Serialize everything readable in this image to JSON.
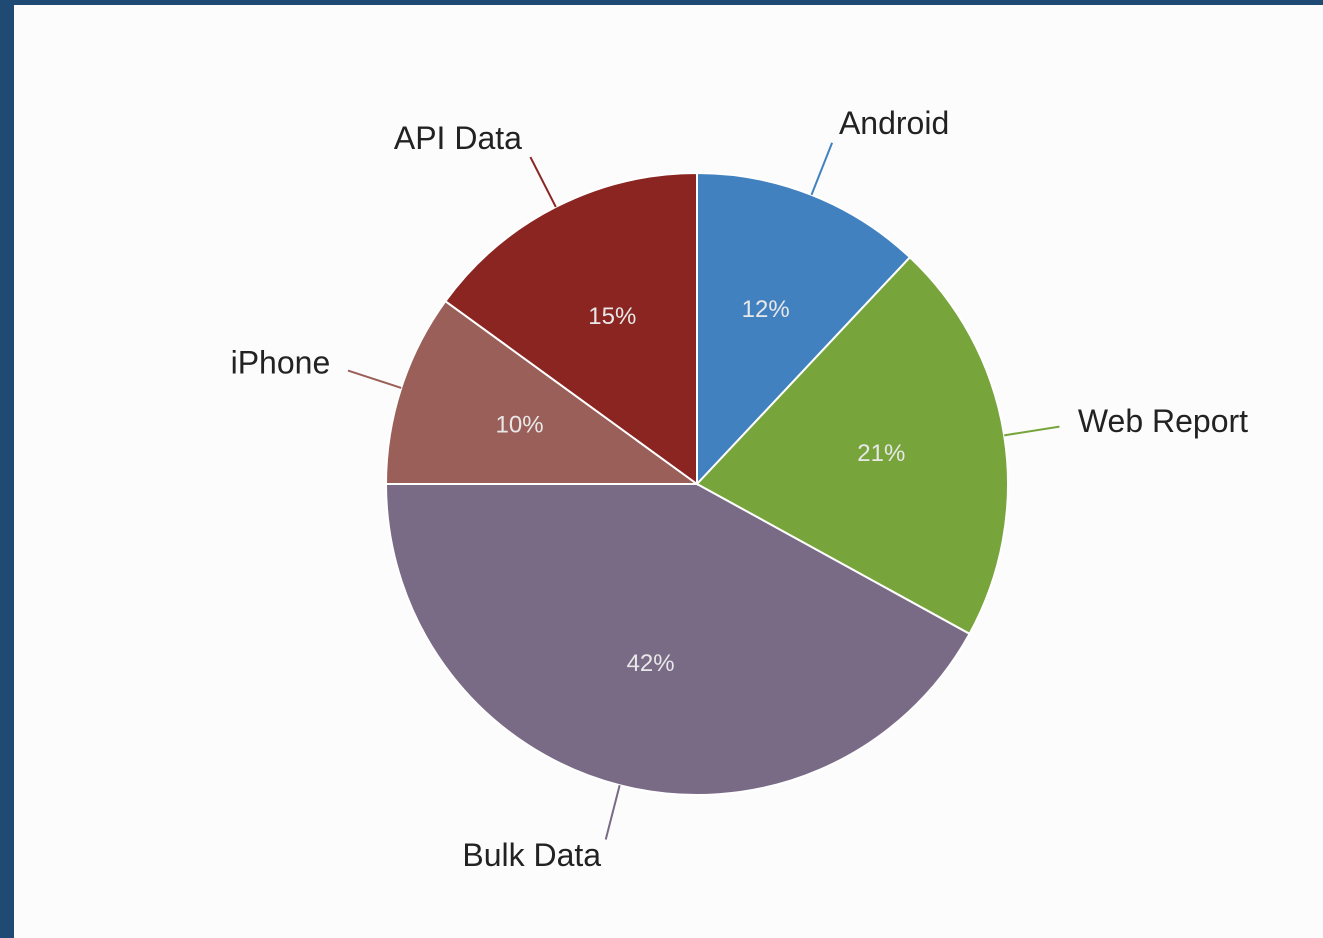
{
  "chart_data": {
    "type": "pie",
    "categories": [
      "Android",
      "Web Report",
      "Bulk Data",
      "iPhone",
      "API Data"
    ],
    "values": [
      12,
      21,
      42,
      10,
      15
    ],
    "value_labels": [
      "12%",
      "21%",
      "42%",
      "10%",
      "15%"
    ],
    "colors": [
      "#4281c0",
      "#77a53b",
      "#796a86",
      "#9a5f58",
      "#8a2521"
    ]
  }
}
